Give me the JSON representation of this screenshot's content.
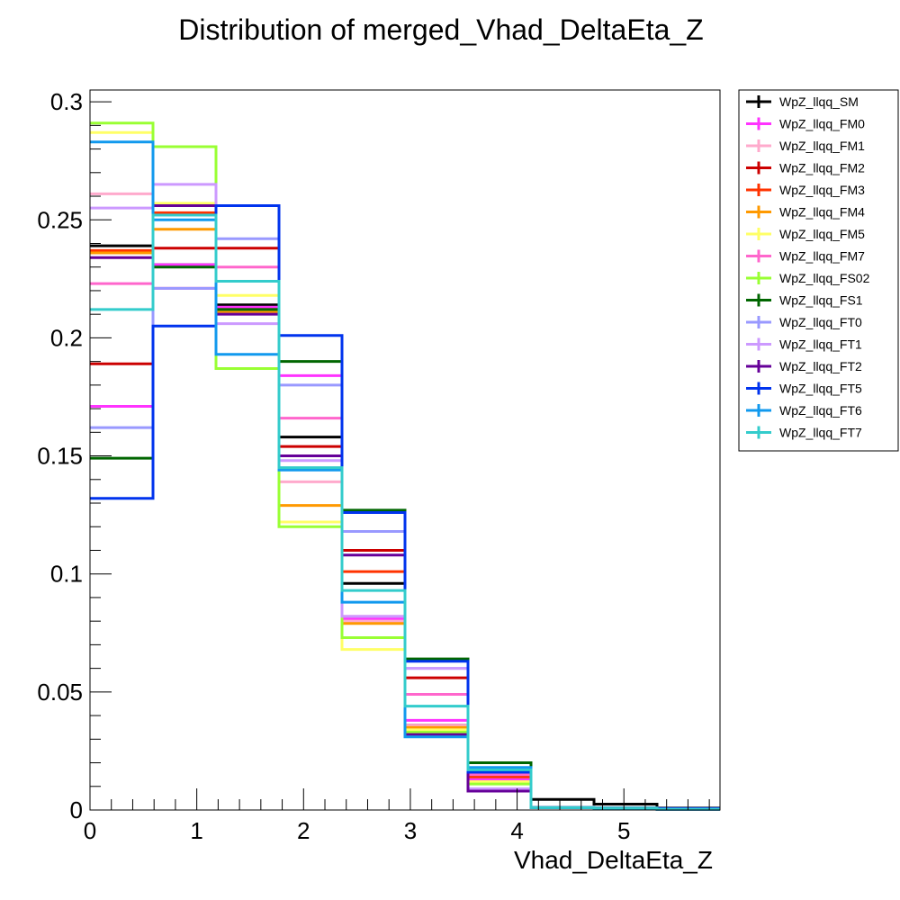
{
  "chart_data": {
    "type": "step-histogram",
    "title": "Distribution of merged_Vhad_DeltaEta_Z",
    "xlabel": "Vhad_DeltaEta_Z",
    "ylabel": "",
    "xlim": [
      0,
      5.9
    ],
    "ylim": [
      0,
      0.305
    ],
    "bin_edges": [
      0,
      0.59,
      1.18,
      1.77,
      2.36,
      2.95,
      3.54,
      4.13,
      4.72,
      5.31,
      5.9
    ],
    "x_ticks": [
      "0",
      "1",
      "2",
      "3",
      "4",
      "5"
    ],
    "y_ticks": [
      "0",
      "0.05",
      "0.1",
      "0.15",
      "0.2",
      "0.25",
      "0.3"
    ],
    "legend_position": "right",
    "series": [
      {
        "name": "WpZ_llqq_SM",
        "color": "#000000",
        "values": [
          0.239,
          0.231,
          0.214,
          0.158,
          0.096,
          0.036,
          0.016,
          0.0045,
          0.0025,
          0.0008
        ]
      },
      {
        "name": "WpZ_llqq_FM0",
        "color": "#ff33ff",
        "values": [
          0.171,
          0.231,
          0.213,
          0.184,
          0.081,
          0.038,
          0.013,
          0.001,
          0.0008,
          0.0003
        ]
      },
      {
        "name": "WpZ_llqq_FM1",
        "color": "#ffaacc",
        "values": [
          0.261,
          0.221,
          0.211,
          0.139,
          0.08,
          0.036,
          0.014,
          0.001,
          0.0008,
          0.0003
        ]
      },
      {
        "name": "WpZ_llqq_FM2",
        "color": "#cc0000",
        "values": [
          0.189,
          0.238,
          0.238,
          0.154,
          0.11,
          0.056,
          0.016,
          0.001,
          0.0008,
          0.0003
        ]
      },
      {
        "name": "WpZ_llqq_FM3",
        "color": "#ff3300",
        "values": [
          0.237,
          0.253,
          0.212,
          0.15,
          0.101,
          0.034,
          0.014,
          0.001,
          0.0008,
          0.0003
        ]
      },
      {
        "name": "WpZ_llqq_FM4",
        "color": "#ff9900",
        "values": [
          0.236,
          0.246,
          0.211,
          0.129,
          0.079,
          0.035,
          0.012,
          0.001,
          0.0008,
          0.0003
        ]
      },
      {
        "name": "WpZ_llqq_FM5",
        "color": "#ffff66",
        "values": [
          0.287,
          0.257,
          0.218,
          0.122,
          0.068,
          0.034,
          0.012,
          0.001,
          0.0008,
          0.0003
        ]
      },
      {
        "name": "WpZ_llqq_FM7",
        "color": "#ff66cc",
        "values": [
          0.223,
          0.221,
          0.23,
          0.166,
          0.082,
          0.049,
          0.015,
          0.001,
          0.0008,
          0.0003
        ]
      },
      {
        "name": "WpZ_llqq_FS02",
        "color": "#99ff33",
        "values": [
          0.291,
          0.281,
          0.187,
          0.12,
          0.073,
          0.033,
          0.011,
          0.001,
          0.0008,
          0.0003
        ]
      },
      {
        "name": "WpZ_llqq_FS1",
        "color": "#006600",
        "values": [
          0.149,
          0.23,
          0.212,
          0.19,
          0.127,
          0.064,
          0.02,
          0.001,
          0.0008,
          0.0003
        ]
      },
      {
        "name": "WpZ_llqq_FT0",
        "color": "#9999ff",
        "values": [
          0.162,
          0.221,
          0.242,
          0.18,
          0.118,
          0.06,
          0.017,
          0.001,
          0.0008,
          0.0003
        ]
      },
      {
        "name": "WpZ_llqq_FT1",
        "color": "#cc99ff",
        "values": [
          0.255,
          0.265,
          0.206,
          0.148,
          0.082,
          0.06,
          0.009,
          0.001,
          0.0008,
          0.0003
        ]
      },
      {
        "name": "WpZ_llqq_FT2",
        "color": "#660099",
        "values": [
          0.234,
          0.256,
          0.21,
          0.15,
          0.108,
          0.032,
          0.008,
          0.001,
          0.0008,
          0.0003
        ]
      },
      {
        "name": "WpZ_llqq_FT5",
        "color": "#0033ee",
        "values": [
          0.132,
          0.205,
          0.256,
          0.201,
          0.126,
          0.063,
          0.016,
          0.001,
          0.0008,
          0.0006
        ]
      },
      {
        "name": "WpZ_llqq_FT6",
        "color": "#1199ee",
        "values": [
          0.283,
          0.25,
          0.193,
          0.144,
          0.088,
          0.031,
          0.018,
          0.001,
          0.0008,
          0.0003
        ]
      },
      {
        "name": "WpZ_llqq_FT7",
        "color": "#33cccc",
        "values": [
          0.212,
          0.252,
          0.224,
          0.145,
          0.093,
          0.044,
          0.017,
          0.001,
          0.0008,
          0.0003
        ]
      }
    ]
  }
}
